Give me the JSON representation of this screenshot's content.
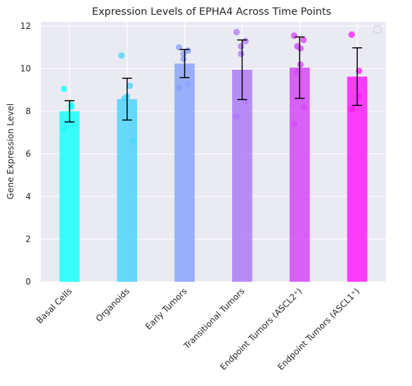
{
  "chart_data": {
    "type": "bar",
    "title": "Expression Levels of EPHA4 Across Time Points",
    "xlabel": "",
    "ylabel": "Gene Expression Level",
    "ylim": [
      0,
      12.2
    ],
    "yticks": [
      0,
      2,
      4,
      6,
      8,
      10,
      12
    ],
    "grid": true,
    "legend": "top-right (empty)",
    "categories": [
      "Basal Cells",
      "Organoids",
      "Early Tumors",
      "Transitional Tumors",
      "Endpoint Tumors (ASCL2⁺)",
      "Endpoint Tumors (ASCL1⁺)"
    ],
    "values": [
      8.0,
      8.57,
      10.24,
      9.95,
      10.05,
      9.63
    ],
    "errors": [
      0.5,
      0.98,
      0.66,
      1.4,
      1.44,
      1.35
    ],
    "points": [
      [
        9.05,
        8.3,
        8.2,
        7.15
      ],
      [
        10.62,
        9.2,
        8.7,
        8.6,
        6.6
      ],
      [
        11.0,
        10.85,
        10.7,
        10.45,
        9.3,
        9.1
      ],
      [
        11.72,
        11.3,
        11.05,
        10.7,
        8.45,
        7.75
      ],
      [
        11.55,
        11.35,
        11.05,
        10.95,
        10.2,
        9.85,
        8.2,
        7.4
      ],
      [
        11.6,
        9.9,
        8.7,
        8.1
      ]
    ],
    "colors": [
      "#17fffa",
      "#4fd3fb",
      "#8aa3fa",
      "#ae7af8",
      "#d548f7",
      "#ff1dfb"
    ]
  }
}
